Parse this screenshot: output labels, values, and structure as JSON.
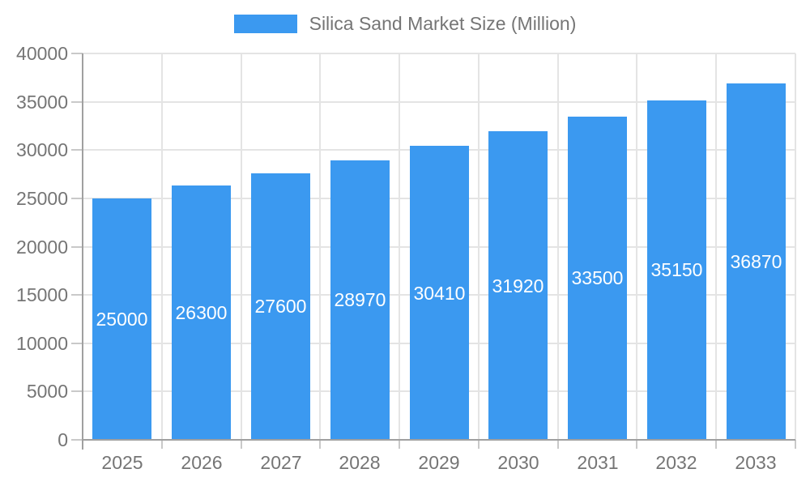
{
  "legend": {
    "label": "Silica Sand Market Size (Million)"
  },
  "chart_data": {
    "type": "bar",
    "title": "Silica Sand Market Size (Million)",
    "categories": [
      "2025",
      "2026",
      "2027",
      "2028",
      "2029",
      "2030",
      "2031",
      "2032",
      "2033"
    ],
    "values": [
      25000,
      26300,
      27600,
      28970,
      30410,
      31920,
      33500,
      35150,
      36870
    ],
    "xlabel": "",
    "ylabel": "",
    "ylim": [
      0,
      40000
    ],
    "yticks": [
      0,
      5000,
      10000,
      15000,
      20000,
      25000,
      30000,
      35000,
      40000
    ],
    "grid": true,
    "legend_position": "top-center",
    "bar_label_position": "center-inside",
    "colors": {
      "bar": "#3B99F0",
      "bar_label": "#ffffff",
      "axis_line": "#A0A0A0",
      "grid_line": "#E4E4E4",
      "tick_mark": "#C9C9C9",
      "tick_label": "#757575"
    }
  }
}
